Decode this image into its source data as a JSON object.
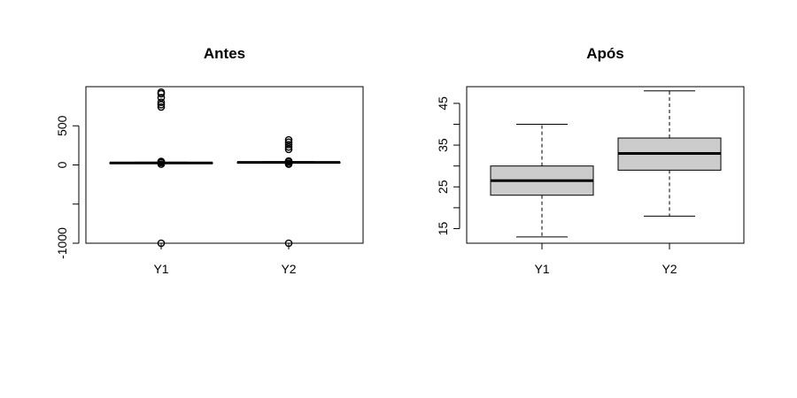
{
  "colors": {
    "box_fill": "#cccccc",
    "stroke": "#000000",
    "background": "#ffffff"
  },
  "chart_data": [
    {
      "type": "boxplot",
      "title": "Antes",
      "xlabel": "",
      "ylabel": "",
      "categories": [
        "Y1",
        "Y2"
      ],
      "ylim": [
        -1000,
        1000
      ],
      "yticks": [
        -1000,
        -500,
        0,
        500
      ],
      "ytick_labels": [
        "-1000",
        "",
        "0",
        "500"
      ],
      "boxes": [
        {
          "name": "Y1",
          "whisker_low": 18,
          "q1": 22,
          "median": 26,
          "q3": 29,
          "whisker_high": 36,
          "outliers": [
            -1000,
            10,
            30,
            40,
            45,
            800,
            770,
            740,
            860,
            910,
            930
          ]
        },
        {
          "name": "Y2",
          "whisker_low": 24,
          "q1": 28,
          "median": 32,
          "q3": 36,
          "whisker_high": 42,
          "outliers": [
            -1000,
            10,
            20,
            40,
            50,
            200,
            230,
            260,
            290,
            320
          ]
        }
      ]
    },
    {
      "type": "boxplot",
      "title": "Após",
      "xlabel": "",
      "ylabel": "",
      "categories": [
        "Y1",
        "Y2"
      ],
      "ylim": [
        11.5,
        49
      ],
      "yticks": [
        15,
        20,
        25,
        30,
        35,
        40,
        45
      ],
      "ytick_labels": [
        "15",
        "",
        "25",
        "",
        "35",
        "",
        "45"
      ],
      "boxes": [
        {
          "name": "Y1",
          "whisker_low": 13,
          "q1": 23,
          "median": 26.5,
          "q3": 30,
          "whisker_high": 40,
          "outliers": []
        },
        {
          "name": "Y2",
          "whisker_low": 18,
          "q1": 29,
          "median": 33,
          "q3": 36.7,
          "whisker_high": 48,
          "outliers": []
        }
      ]
    }
  ]
}
